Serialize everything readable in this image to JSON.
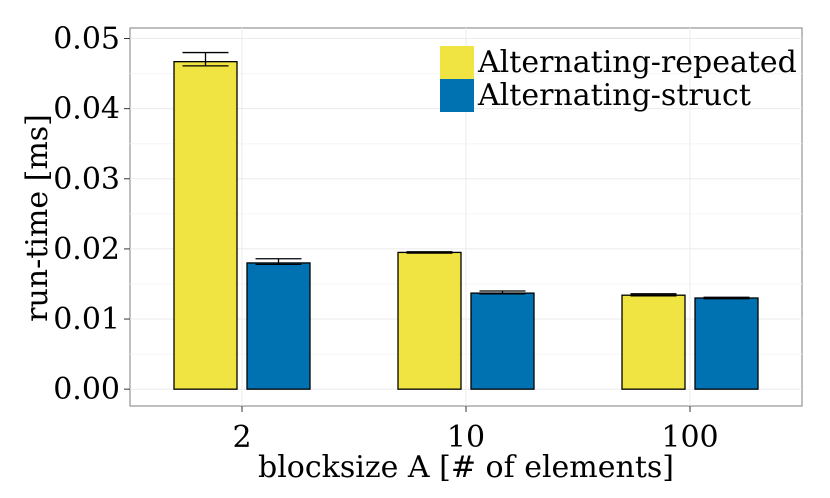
{
  "chart_data": {
    "type": "bar",
    "title": "",
    "xlabel": "blocksize A [# of elements]",
    "ylabel": "run-time [ms]",
    "categories": [
      "2",
      "10",
      "100"
    ],
    "ylim": [
      -0.0024,
      0.0515
    ],
    "yticks": [
      "0.00",
      "0.01",
      "0.02",
      "0.03",
      "0.04",
      "0.05"
    ],
    "grid": true,
    "legend_position": "top-right",
    "series": [
      {
        "name": "Alternating-repeated",
        "color": "#f0e442",
        "values": [
          0.0467,
          0.0195,
          0.0134
        ],
        "error_low": [
          0.0461,
          0.0194,
          0.0133
        ],
        "error_high": [
          0.048,
          0.0196,
          0.0136
        ]
      },
      {
        "name": "Alternating-struct",
        "color": "#0072b2",
        "values": [
          0.018,
          0.0137,
          0.013
        ],
        "error_low": [
          0.0178,
          0.0136,
          0.0129
        ],
        "error_high": [
          0.0186,
          0.014,
          0.0131
        ]
      }
    ]
  }
}
